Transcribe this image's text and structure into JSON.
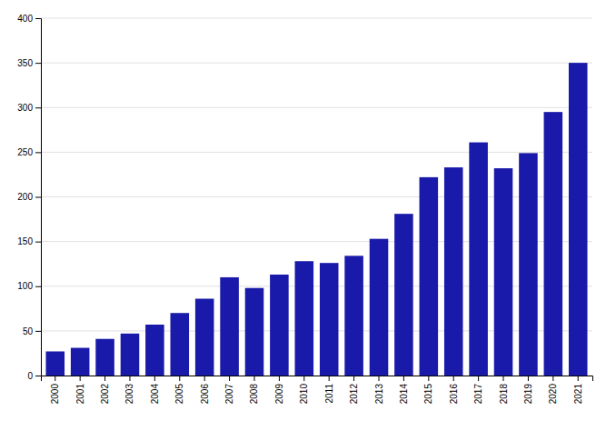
{
  "chart_data": {
    "type": "bar",
    "categories": [
      "2000",
      "2001",
      "2002",
      "2003",
      "2004",
      "2005",
      "2006",
      "2007",
      "2008",
      "2009",
      "2010",
      "2011",
      "2012",
      "2013",
      "2014",
      "2015",
      "2016",
      "2017",
      "2018",
      "2019",
      "2020",
      "2021"
    ],
    "values": [
      27,
      31,
      41,
      47,
      57,
      70,
      86,
      110,
      98,
      113,
      128,
      126,
      134,
      153,
      181,
      222,
      233,
      261,
      232,
      249,
      295,
      350
    ],
    "color": "#1a1aaa",
    "ylim": [
      0,
      400
    ],
    "yticks": [
      0,
      50,
      100,
      150,
      200,
      250,
      300,
      350,
      400
    ],
    "grid": true
  }
}
